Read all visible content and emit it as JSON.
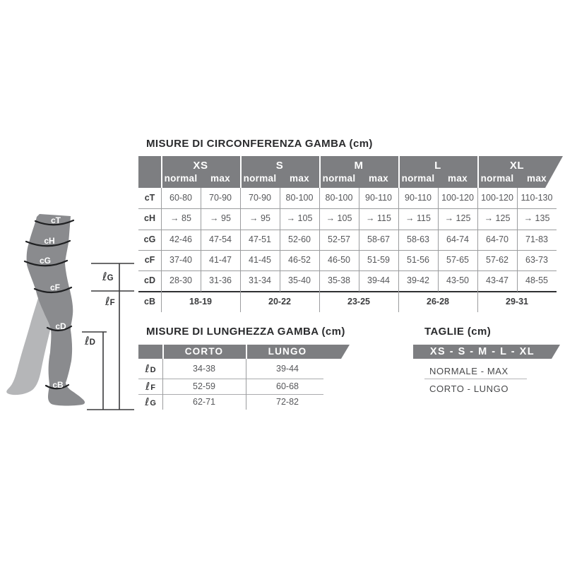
{
  "colors": {
    "banner_gray": "#7d7e81",
    "leg_front": "#8a8b8e",
    "leg_back": "#b5b6b8",
    "grid_light": "#9b9c9e",
    "grid_dark": "#2f3032",
    "text_dark": "#3a3b3d",
    "value_gray": "#56575a"
  },
  "circumference_table": {
    "title": "MISURE DI CIRCONFERENZA GAMBA (cm)",
    "sizes": [
      "XS",
      "S",
      "M",
      "L",
      "XL"
    ],
    "subheaders": [
      "normal",
      "max"
    ],
    "rows": [
      {
        "label": "cT",
        "values": [
          "60-80",
          "70-90",
          "70-90",
          "80-100",
          "80-100",
          "90-110",
          "90-110",
          "100-120",
          "100-120",
          "110-130"
        ]
      },
      {
        "label": "cH",
        "values": [
          "→ 85",
          "→ 95",
          "→ 95",
          "→ 105",
          "→ 105",
          "→ 115",
          "→ 115",
          "→ 125",
          "→ 125",
          "→ 135"
        ]
      },
      {
        "label": "cG",
        "values": [
          "42-46",
          "47-54",
          "47-51",
          "52-60",
          "52-57",
          "58-67",
          "58-63",
          "64-74",
          "64-70",
          "71-83"
        ]
      },
      {
        "label": "cF",
        "values": [
          "37-40",
          "41-47",
          "41-45",
          "46-52",
          "46-50",
          "51-59",
          "51-56",
          "57-65",
          "57-62",
          "63-73"
        ]
      },
      {
        "label": "cD",
        "values": [
          "28-30",
          "31-36",
          "31-34",
          "35-40",
          "35-38",
          "39-44",
          "39-42",
          "43-50",
          "43-47",
          "48-55"
        ]
      }
    ],
    "span_row": {
      "label": "cB",
      "values": [
        "18-19",
        "20-22",
        "23-25",
        "26-28",
        "29-31"
      ]
    }
  },
  "length_table": {
    "title": "MISURE DI LUNGHEZZA GAMBA (cm)",
    "columns": [
      "CORTO",
      "LUNGO"
    ],
    "rows": [
      {
        "ell": "ℓ",
        "letter": "D",
        "values": [
          "34-38",
          "39-44"
        ]
      },
      {
        "ell": "ℓ",
        "letter": "F",
        "values": [
          "52-59",
          "60-68"
        ]
      },
      {
        "ell": "ℓ",
        "letter": "G",
        "values": [
          "62-71",
          "72-82"
        ]
      }
    ]
  },
  "taglie": {
    "title": "TAGLIE (cm)",
    "banner": "XS - S - M - L - XL",
    "lines": [
      "NORMALE - MAX",
      "CORTO - LUNGO"
    ]
  },
  "leg_diagram": {
    "bands": [
      "cT",
      "cH",
      "cG",
      "cF",
      "cD",
      "cB"
    ],
    "length_markers": [
      {
        "ell": "ℓ",
        "letter": "G"
      },
      {
        "ell": "ℓ",
        "letter": "F"
      },
      {
        "ell": "ℓ",
        "letter": "D"
      }
    ]
  }
}
